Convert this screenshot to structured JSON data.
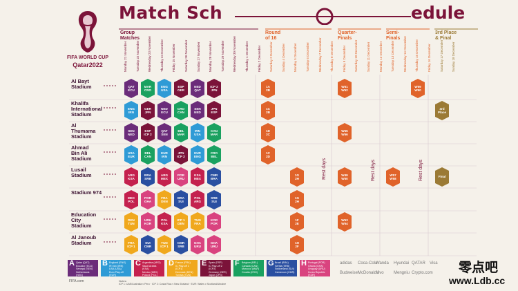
{
  "header": {
    "title_left": "Match Sch",
    "title_right": "edule",
    "logo_line1": "FIFA WORLD CUP",
    "logo_line2": "Qatar2022"
  },
  "phases": [
    {
      "label": "Group\nMatches",
      "color": "#7b1339"
    },
    {
      "label": "Round\nof 16",
      "color": "#e0632a"
    },
    {
      "label": "Quarter-\nFinals",
      "color": "#e0632a"
    },
    {
      "label": "Semi-\nFinals",
      "color": "#e0632a"
    },
    {
      "label": "3rd Place\n& Final",
      "color": "#9b7a35"
    }
  ],
  "days": [
    "Monday 21 November",
    "Tuesday 22 November",
    "Wednesday 23 November",
    "Thursday 24 November",
    "Friday 25 November",
    "Saturday 26 November",
    "Sunday 27 November",
    "Monday 28 November",
    "Tuesday 29 November",
    "Wednesday 30 November",
    "Thursday 1 December",
    "Friday 2 December",
    "Saturday 3 December",
    "Sunday 4 December",
    "Monday 5 December",
    "Tuesday 6 December",
    "Wednesday 7 December",
    "Thursday 8 December",
    "Friday 9 December",
    "Saturday 10 December",
    "Sunday 11 December",
    "Monday 12 December",
    "Tuesday 13 December",
    "Wednesday 14 December",
    "Thursday 15 December",
    "Friday 16 December",
    "Saturday 17 December",
    "Sunday 18 December"
  ],
  "stadiums": [
    "Al Bayt\nStadium",
    "Khalifa\nInternational\nStadium",
    "Al\nThumama\nStadium",
    "Ahmad\nBin Ali\nStadium",
    "Lusail\nStadium",
    "Stadium 974",
    "Education\nCity\nStadium",
    "Al Janoub\nStadium"
  ],
  "rest_days_label": "Rest days",
  "matches": [
    {
      "row": 0,
      "col": 0,
      "t1": "QAT",
      "t2": "ECU",
      "group": "A"
    },
    {
      "row": 0,
      "col": 1,
      "t1": "MAR",
      "t2": "CRO",
      "group": "F"
    },
    {
      "row": 0,
      "col": 2,
      "t1": "ENG",
      "t2": "USA",
      "group": "B"
    },
    {
      "row": 0,
      "col": 3,
      "t1": "ESP",
      "t2": "GER",
      "group": "E"
    },
    {
      "row": 0,
      "col": 4,
      "t1": "NED",
      "t2": "QAT",
      "group": "A"
    },
    {
      "row": 0,
      "col": 5,
      "t1": "ICP 2",
      "t2": "JPN",
      "group": "E"
    },
    {
      "row": 0,
      "col": 6,
      "t1": "1A",
      "t2": "2B",
      "group": "R"
    },
    {
      "row": 0,
      "col": 8,
      "t1": "W51",
      "t2": "W52",
      "group": "R"
    },
    {
      "row": 0,
      "col": 10,
      "t1": "W59",
      "t2": "W60",
      "group": "R"
    },
    {
      "row": 1,
      "col": 0,
      "t1": "ENG",
      "t2": "IRN",
      "group": "B"
    },
    {
      "row": 1,
      "col": 1,
      "t1": "GER",
      "t2": "JPN",
      "group": "E"
    },
    {
      "row": 1,
      "col": 2,
      "t1": "NED",
      "t2": "ECU",
      "group": "A"
    },
    {
      "row": 1,
      "col": 3,
      "t1": "CRO",
      "t2": "CAN",
      "group": "F"
    },
    {
      "row": 1,
      "col": 4,
      "t1": "SEN",
      "t2": "NED",
      "group": "A"
    },
    {
      "row": 1,
      "col": 5,
      "t1": "JPN",
      "t2": "ESP",
      "group": "E"
    },
    {
      "row": 1,
      "col": 6,
      "t1": "1C",
      "t2": "2B",
      "group": "R"
    },
    {
      "row": 1,
      "col": 11,
      "t1": "3rd",
      "t2": "Place",
      "group": "F3"
    },
    {
      "row": 2,
      "col": 0,
      "t1": "SEN",
      "t2": "NED",
      "group": "A"
    },
    {
      "row": 2,
      "col": 1,
      "t1": "ESP",
      "t2": "ICP 2",
      "group": "E"
    },
    {
      "row": 2,
      "col": 2,
      "t1": "QAT",
      "t2": "SEN",
      "group": "A"
    },
    {
      "row": 2,
      "col": 3,
      "t1": "BEL",
      "t2": "MAR",
      "group": "F"
    },
    {
      "row": 2,
      "col": 4,
      "t1": "IRN",
      "t2": "USA",
      "group": "B"
    },
    {
      "row": 2,
      "col": 5,
      "t1": "CAN",
      "t2": "MAR",
      "group": "F"
    },
    {
      "row": 2,
      "col": 6,
      "t1": "1D",
      "t2": "2C",
      "group": "R"
    },
    {
      "row": 2,
      "col": 8,
      "t1": "W55",
      "t2": "W56",
      "group": "R"
    },
    {
      "row": 3,
      "col": 0,
      "t1": "USA",
      "t2": "EUR",
      "group": "B"
    },
    {
      "row": 3,
      "col": 1,
      "t1": "BEL",
      "t2": "CAN",
      "group": "F"
    },
    {
      "row": 3,
      "col": 2,
      "t1": "EUR",
      "t2": "IRN",
      "group": "B"
    },
    {
      "row": 3,
      "col": 3,
      "t1": "JPN",
      "t2": "ICP 2",
      "group": "E"
    },
    {
      "row": 3,
      "col": 4,
      "t1": "EUR",
      "t2": "ENG",
      "group": "B"
    },
    {
      "row": 3,
      "col": 5,
      "t1": "CRO",
      "t2": "BEL",
      "group": "F"
    },
    {
      "row": 3,
      "col": 6,
      "t1": "1C",
      "t2": "2D",
      "group": "R"
    },
    {
      "row": 4,
      "col": 0,
      "t1": "ARG",
      "t2": "KSA",
      "group": "C"
    },
    {
      "row": 4,
      "col": 1,
      "t1": "BRA",
      "t2": "SRB",
      "group": "G"
    },
    {
      "row": 4,
      "col": 2,
      "t1": "ARG",
      "t2": "MEX",
      "group": "C"
    },
    {
      "row": 4,
      "col": 3,
      "t1": "POR",
      "t2": "URU",
      "group": "H"
    },
    {
      "row": 4,
      "col": 4,
      "t1": "KSA",
      "t2": "MEX",
      "group": "C"
    },
    {
      "row": 4,
      "col": 5,
      "t1": "CMR",
      "t2": "BRA",
      "group": "G"
    },
    {
      "row": 4,
      "col": 7,
      "t1": "1G",
      "t2": "2H",
      "group": "R"
    },
    {
      "row": 4,
      "col": 8,
      "t1": "W49",
      "t2": "W50",
      "group": "R"
    },
    {
      "row": 4,
      "col": 9,
      "t1": "W57",
      "t2": "W58",
      "group": "R"
    },
    {
      "row": 4,
      "col": 11,
      "t1": "Final",
      "t2": "",
      "group": "F3"
    },
    {
      "row": 5,
      "col": 0,
      "t1": "MEX",
      "t2": "POL",
      "group": "C"
    },
    {
      "row": 5,
      "col": 1,
      "t1": "POR",
      "t2": "GHA",
      "group": "H"
    },
    {
      "row": 5,
      "col": 2,
      "t1": "FRA",
      "t2": "DEN",
      "group": "D"
    },
    {
      "row": 5,
      "col": 3,
      "t1": "BRA",
      "t2": "SUI",
      "group": "G"
    },
    {
      "row": 5,
      "col": 4,
      "t1": "POL",
      "t2": "ARG",
      "group": "C"
    },
    {
      "row": 5,
      "col": 5,
      "t1": "SRB",
      "t2": "SUI",
      "group": "G"
    },
    {
      "row": 5,
      "col": 7,
      "t1": "1G",
      "t2": "2H",
      "group": "R"
    },
    {
      "row": 6,
      "col": 0,
      "t1": "DEN",
      "t2": "TUN",
      "group": "D"
    },
    {
      "row": 6,
      "col": 1,
      "t1": "URU",
      "t2": "KOR",
      "group": "H"
    },
    {
      "row": 6,
      "col": 2,
      "t1": "POL",
      "t2": "KSA",
      "group": "C"
    },
    {
      "row": 6,
      "col": 3,
      "t1": "ICP 1",
      "t2": "DEN",
      "group": "D"
    },
    {
      "row": 6,
      "col": 4,
      "t1": "TUN",
      "t2": "FRA",
      "group": "D"
    },
    {
      "row": 6,
      "col": 5,
      "t1": "KOR",
      "t2": "POR",
      "group": "H"
    },
    {
      "row": 6,
      "col": 7,
      "t1": "1F",
      "t2": "2E",
      "group": "R"
    },
    {
      "row": 6,
      "col": 8,
      "t1": "W53",
      "t2": "W54",
      "group": "R"
    },
    {
      "row": 7,
      "col": 0,
      "t1": "FRA",
      "t2": "ICP 1",
      "group": "D"
    },
    {
      "row": 7,
      "col": 1,
      "t1": "SUI",
      "t2": "CMR",
      "group": "G"
    },
    {
      "row": 7,
      "col": 2,
      "t1": "TUN",
      "t2": "ICP 1",
      "group": "D"
    },
    {
      "row": 7,
      "col": 3,
      "t1": "CMR",
      "t2": "SRB",
      "group": "G"
    },
    {
      "row": 7,
      "col": 4,
      "t1": "GHA",
      "t2": "URU",
      "group": "H"
    },
    {
      "row": 7,
      "col": 5,
      "t1": "GHA",
      "t2": "URU",
      "group": "H"
    },
    {
      "row": 7,
      "col": 7,
      "t1": "1H",
      "t2": "2F",
      "group": "R"
    }
  ],
  "group_colors": {
    "A": "#6b2c7a",
    "B": "#2f9bd6",
    "C": "#c4214e",
    "D": "#f0a81d",
    "E": "#7b1339",
    "F": "#1aa160",
    "G": "#2a4fa1",
    "H": "#d9437f",
    "R": "#e0632a",
    "F3": "#9b7a35"
  },
  "legend": [
    {
      "letter": "A",
      "teams": "Qatar (QAT)\nEcuador (ECU)\nSenegal (SEN)\nNetherlands (NED)",
      "color": "#6b2c7a"
    },
    {
      "letter": "B",
      "teams": "England (ENG)\nIR Iran (IRN)\nUSA (USA)\nEuro Play-off (EUR)",
      "color": "#2f9bd6"
    },
    {
      "letter": "C",
      "teams": "Argentina (ARG)\nSaudi Arabia (KSA)\nMexico (MEX)\nPoland (POL)",
      "color": "#c4214e"
    },
    {
      "letter": "D",
      "teams": "France (FRA)\nIC Play-off 1 (ICP1)\nDenmark (DEN)\nTunisia (TUN)",
      "color": "#f0a81d"
    },
    {
      "letter": "E",
      "teams": "Spain (ESP)\nIC Play-off 2 (ICP2)\nGermany (GER)\nJapan (JPN)",
      "color": "#7b1339"
    },
    {
      "letter": "F",
      "teams": "Belgium (BEL)\nCanada (CAN)\nMorocco (MAR)\nCroatia (CRO)",
      "color": "#1aa160"
    },
    {
      "letter": "G",
      "teams": "Brazil (BRA)\nSerbia (SRB)\nSwitzerland (SUI)\nCameroon (CMR)",
      "color": "#2a4fa1"
    },
    {
      "letter": "H",
      "teams": "Portugal (POR)\nGhana (GHA)\nUruguay (URU)\nKorea Republic (KOR)",
      "color": "#d9437f"
    }
  ],
  "footer": {
    "fifa": "FIFA.com",
    "notes_title": "Notes:",
    "notes": "ICP 1: UAE/Australia v Peru · ICP 2: Costa Rica v New Zealand · EUR: Wales v Scotland/Ukraine"
  },
  "sponsors": [
    "adidas",
    "Coca-Cola",
    "Wanda",
    "Hyundai",
    "QATAR",
    "Visa",
    "Budweiser",
    "McDonald's",
    "Vivo",
    "Mengniu",
    "Crypto.com"
  ],
  "watermark": {
    "cn": "零点吧",
    "url": "www.Ldb.cc"
  }
}
